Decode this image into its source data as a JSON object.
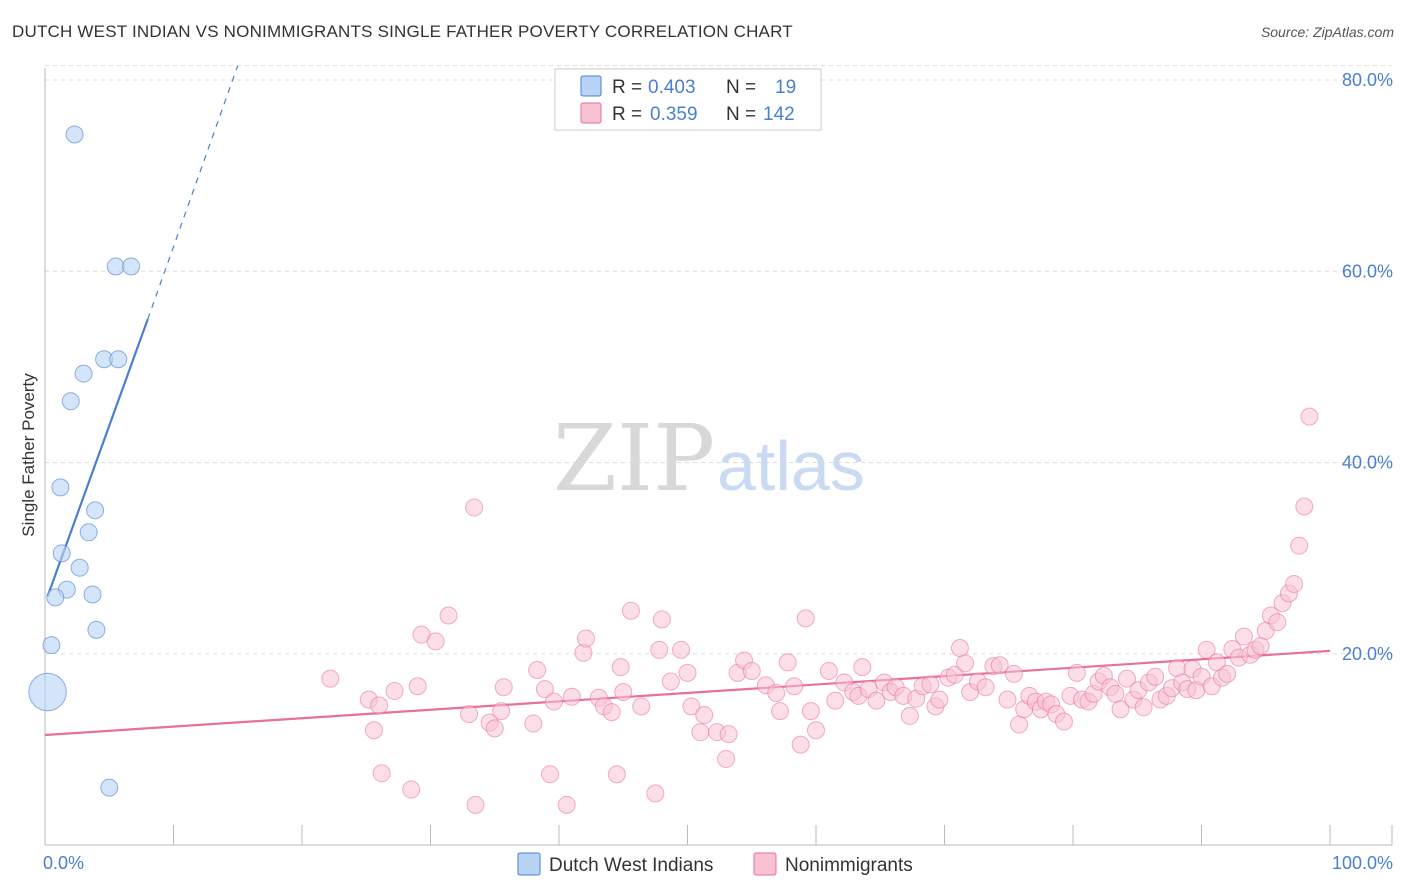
{
  "title": "DUTCH WEST INDIAN VS NONIMMIGRANTS SINGLE FATHER POVERTY CORRELATION CHART",
  "source": "Source: ZipAtlas.com",
  "watermark": {
    "zip": "ZIP",
    "atlas": "atlas"
  },
  "colors": {
    "blue": "#4a7fd0",
    "blue_fill": "#b9d3f5",
    "pink": "#e8709a",
    "pink_fill": "#f7c2d3",
    "grid": "#dddddd"
  },
  "chart_data": {
    "type": "scatter",
    "ylabel": "Single Father Poverty",
    "xlim": [
      0,
      100
    ],
    "ylim": [
      0,
      85
    ],
    "x_tick_labels": [
      {
        "value": 0,
        "label": "0.0%"
      },
      {
        "value": 100,
        "label": "100.0%"
      }
    ],
    "y_tick_labels": [
      {
        "value": 20,
        "label": "20.0%"
      },
      {
        "value": 40,
        "label": "40.0%"
      },
      {
        "value": 60,
        "label": "60.0%"
      },
      {
        "value": 80,
        "label": "80.0%"
      }
    ],
    "grid": true,
    "legend_placement": "top-center",
    "legend_stats": [
      {
        "r_label": "R = ",
        "r": "0.403",
        "n_label": "N = ",
        "n": "19"
      },
      {
        "r_label": "R = ",
        "r": "0.359",
        "n_label": "N = ",
        "n": "142"
      }
    ],
    "series": [
      {
        "name": "Dutch West Indians",
        "color": "#4a7fd0",
        "points": [
          [
            2.3,
            74.3
          ],
          [
            5.5,
            60.5
          ],
          [
            6.7,
            60.5
          ],
          [
            3.0,
            49.3
          ],
          [
            4.6,
            50.8
          ],
          [
            5.7,
            50.8
          ],
          [
            2.0,
            46.4
          ],
          [
            1.2,
            37.4
          ],
          [
            3.9,
            35.0
          ],
          [
            3.4,
            32.7
          ],
          [
            1.3,
            30.5
          ],
          [
            2.7,
            29.0
          ],
          [
            1.7,
            26.7
          ],
          [
            3.7,
            26.2
          ],
          [
            0.8,
            25.9
          ],
          [
            4.0,
            22.5
          ],
          [
            0.5,
            20.9
          ],
          [
            5.0,
            6.0
          ],
          [
            0.2,
            16.0
          ]
        ],
        "sizes": [
          1,
          1,
          1,
          1,
          1,
          1,
          1,
          1,
          1,
          1,
          1,
          1,
          1,
          1,
          1,
          1,
          1,
          1,
          2.2
        ],
        "trend": {
          "x0": 0.2,
          "y0": 26.0,
          "x1": 8.0,
          "y1": 55.0,
          "dash_x1": 15.0,
          "dash_y1": 81.5
        }
      },
      {
        "name": "Nonimmigrants",
        "color": "#e8709a",
        "points": [
          [
            33.4,
            35.3
          ],
          [
            22.2,
            17.4
          ],
          [
            25.2,
            15.2
          ],
          [
            25.6,
            12.0
          ],
          [
            26.0,
            14.6
          ],
          [
            26.2,
            7.5
          ],
          [
            27.2,
            16.1
          ],
          [
            28.5,
            5.8
          ],
          [
            29.0,
            16.6
          ],
          [
            29.3,
            22.0
          ],
          [
            30.4,
            21.3
          ],
          [
            31.4,
            24.0
          ],
          [
            33.0,
            13.7
          ],
          [
            33.5,
            4.2
          ],
          [
            34.6,
            12.8
          ],
          [
            35.0,
            12.2
          ],
          [
            35.5,
            14.0
          ],
          [
            35.7,
            16.5
          ],
          [
            38.0,
            12.7
          ],
          [
            38.3,
            18.3
          ],
          [
            38.9,
            16.3
          ],
          [
            39.3,
            7.4
          ],
          [
            39.6,
            15.0
          ],
          [
            40.6,
            4.2
          ],
          [
            41.0,
            15.5
          ],
          [
            41.9,
            20.1
          ],
          [
            42.1,
            21.6
          ],
          [
            43.1,
            15.4
          ],
          [
            43.5,
            14.5
          ],
          [
            44.1,
            13.9
          ],
          [
            44.5,
            7.4
          ],
          [
            44.8,
            18.6
          ],
          [
            45.0,
            16.0
          ],
          [
            45.6,
            24.5
          ],
          [
            46.4,
            14.5
          ],
          [
            47.5,
            5.4
          ],
          [
            47.8,
            20.4
          ],
          [
            48.0,
            23.6
          ],
          [
            48.7,
            17.1
          ],
          [
            49.5,
            20.4
          ],
          [
            50.0,
            18.0
          ],
          [
            50.3,
            14.5
          ],
          [
            51.0,
            11.8
          ],
          [
            51.3,
            13.6
          ],
          [
            52.3,
            11.8
          ],
          [
            53.0,
            9.0
          ],
          [
            53.2,
            11.6
          ],
          [
            53.9,
            18.0
          ],
          [
            54.4,
            19.3
          ],
          [
            55.0,
            18.2
          ],
          [
            56.1,
            16.7
          ],
          [
            56.9,
            15.9
          ],
          [
            57.2,
            14.0
          ],
          [
            57.8,
            19.1
          ],
          [
            58.3,
            16.6
          ],
          [
            58.8,
            10.5
          ],
          [
            59.2,
            23.7
          ],
          [
            59.6,
            14.0
          ],
          [
            60.0,
            12.0
          ],
          [
            61.0,
            18.2
          ],
          [
            61.5,
            15.1
          ],
          [
            62.2,
            17.0
          ],
          [
            62.9,
            16.0
          ],
          [
            63.3,
            15.6
          ],
          [
            63.6,
            18.6
          ],
          [
            64.1,
            16.3
          ],
          [
            64.7,
            15.1
          ],
          [
            65.3,
            17.0
          ],
          [
            65.8,
            16.0
          ],
          [
            66.2,
            16.5
          ],
          [
            66.8,
            15.6
          ],
          [
            67.3,
            13.5
          ],
          [
            67.8,
            15.3
          ],
          [
            68.3,
            16.6
          ],
          [
            68.9,
            16.8
          ],
          [
            69.3,
            14.5
          ],
          [
            69.6,
            15.2
          ],
          [
            70.3,
            17.5
          ],
          [
            70.8,
            17.8
          ],
          [
            71.2,
            20.6
          ],
          [
            71.6,
            19.0
          ],
          [
            72.0,
            16.0
          ],
          [
            72.6,
            17.1
          ],
          [
            73.2,
            16.5
          ],
          [
            73.8,
            18.7
          ],
          [
            74.3,
            18.8
          ],
          [
            74.9,
            15.2
          ],
          [
            75.4,
            17.9
          ],
          [
            75.8,
            12.6
          ],
          [
            76.2,
            14.2
          ],
          [
            76.6,
            15.6
          ],
          [
            77.1,
            15.0
          ],
          [
            77.5,
            14.2
          ],
          [
            77.9,
            15.0
          ],
          [
            78.3,
            14.7
          ],
          [
            78.7,
            13.7
          ],
          [
            79.3,
            12.9
          ],
          [
            79.8,
            15.6
          ],
          [
            80.3,
            18.0
          ],
          [
            80.7,
            15.2
          ],
          [
            81.2,
            15.0
          ],
          [
            81.6,
            15.8
          ],
          [
            82.0,
            17.1
          ],
          [
            82.4,
            17.7
          ],
          [
            82.9,
            16.5
          ],
          [
            83.3,
            15.8
          ],
          [
            83.7,
            14.2
          ],
          [
            84.2,
            17.4
          ],
          [
            84.7,
            15.2
          ],
          [
            85.1,
            16.2
          ],
          [
            85.5,
            14.4
          ],
          [
            85.9,
            17.0
          ],
          [
            86.4,
            17.6
          ],
          [
            86.8,
            15.2
          ],
          [
            87.3,
            15.6
          ],
          [
            87.7,
            16.4
          ],
          [
            88.1,
            18.5
          ],
          [
            88.5,
            17.0
          ],
          [
            88.9,
            16.3
          ],
          [
            89.3,
            18.4
          ],
          [
            89.6,
            16.2
          ],
          [
            90.0,
            17.6
          ],
          [
            90.4,
            20.4
          ],
          [
            90.8,
            16.6
          ],
          [
            91.2,
            19.1
          ],
          [
            91.6,
            17.5
          ],
          [
            92.0,
            17.9
          ],
          [
            92.4,
            20.5
          ],
          [
            92.9,
            19.6
          ],
          [
            93.3,
            21.8
          ],
          [
            93.8,
            19.9
          ],
          [
            94.2,
            20.4
          ],
          [
            94.6,
            20.8
          ],
          [
            95.0,
            22.4
          ],
          [
            95.4,
            24.0
          ],
          [
            95.9,
            23.3
          ],
          [
            96.3,
            25.3
          ],
          [
            96.8,
            26.3
          ],
          [
            97.2,
            27.3
          ],
          [
            97.6,
            31.3
          ],
          [
            98.0,
            35.4
          ],
          [
            98.4,
            44.8
          ]
        ],
        "trend": {
          "x0": 0,
          "y0": 11.5,
          "x1": 100,
          "y1": 20.3
        }
      }
    ]
  }
}
